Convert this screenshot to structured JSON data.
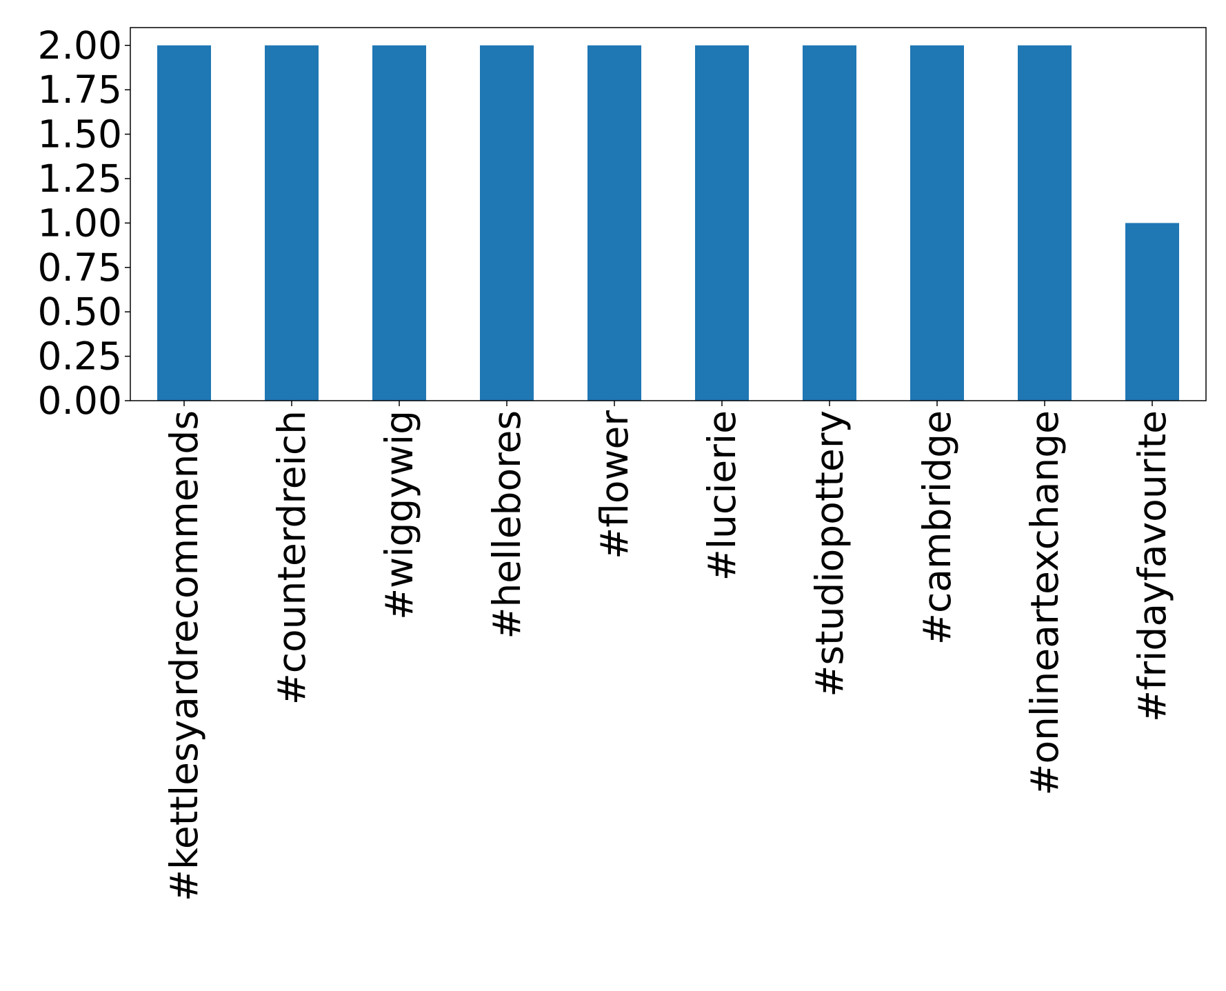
{
  "chart_data": {
    "type": "bar",
    "categories": [
      "#kettlesyardrecommends",
      "#counterdreich",
      "#wiggywig",
      "#hellebores",
      "#flower",
      "#lucierie",
      "#studiopottery",
      "#cambridge",
      "#onlineartexchange",
      "#fridayfavourite"
    ],
    "values": [
      2,
      2,
      2,
      2,
      2,
      2,
      2,
      2,
      2,
      1
    ],
    "color": "#1f77b4",
    "ylim": [
      0,
      2.1
    ],
    "yticks": [
      {
        "value": 0,
        "label": "0.00"
      },
      {
        "value": 0.25,
        "label": "0.25"
      },
      {
        "value": 0.5,
        "label": "0.50"
      },
      {
        "value": 0.75,
        "label": "0.75"
      },
      {
        "value": 1,
        "label": "1.00"
      },
      {
        "value": 1.25,
        "label": "1.25"
      },
      {
        "value": 1.5,
        "label": "1.50"
      },
      {
        "value": 1.75,
        "label": "1.75"
      },
      {
        "value": 2,
        "label": "2.00"
      }
    ],
    "grid": false
  }
}
